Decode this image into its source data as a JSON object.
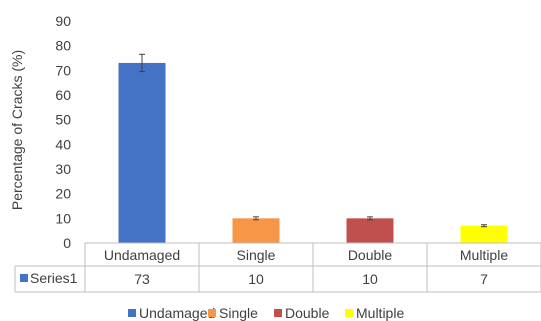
{
  "chart_data": {
    "type": "bar",
    "categories": [
      "Undamaged",
      "Single",
      "Double",
      "Multiple"
    ],
    "series": [
      {
        "name": "Series1",
        "values": [
          73,
          10,
          10,
          7
        ]
      }
    ],
    "error_bars": [
      3.5,
      0.6,
      0.6,
      0.4
    ],
    "bar_colors": [
      "#4472C4",
      "#F79646",
      "#C0504D",
      "#FFFF00"
    ],
    "series_color": "#4472C4",
    "title": "",
    "xlabel": "",
    "ylabel": "Percentage of Cracks (%)",
    "ylim": [
      0,
      90
    ],
    "yticks": [
      0,
      10,
      20,
      30,
      40,
      50,
      60,
      70,
      80,
      90
    ],
    "data_table": {
      "row_label": "Series1",
      "values": [
        "73",
        "10",
        "10",
        "7"
      ]
    },
    "legend": {
      "position": "bottom",
      "entries": [
        "Undamaged",
        "Single",
        "Double",
        "Multiple"
      ]
    },
    "grid": false
  }
}
